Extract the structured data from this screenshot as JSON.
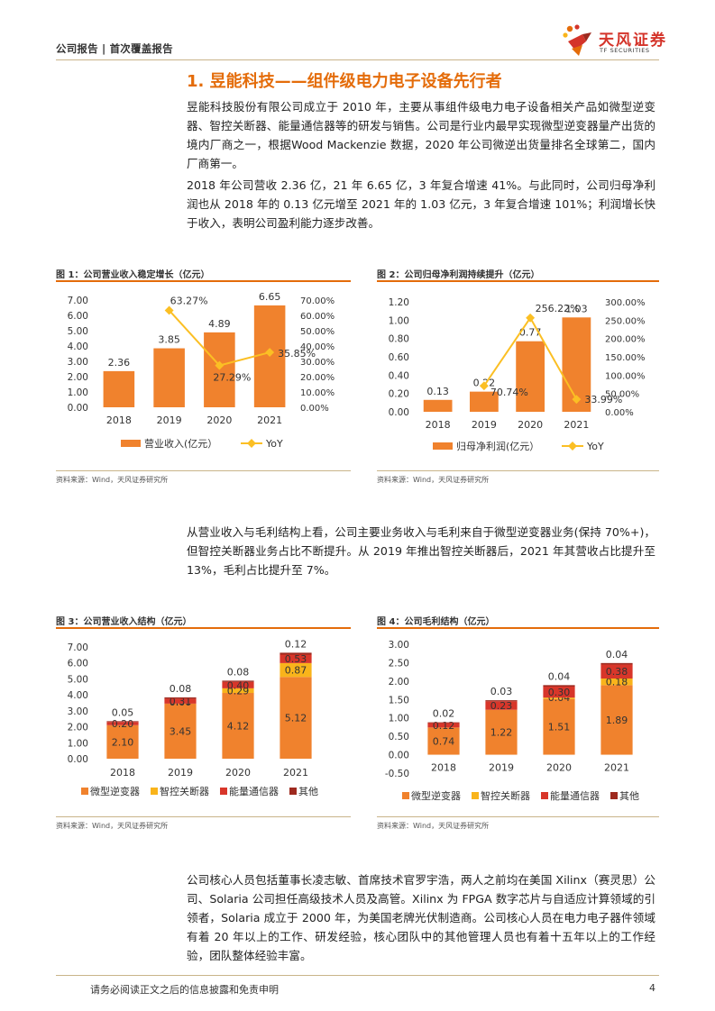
{
  "header": {
    "left_text": "公司报告 | 首次覆盖报告",
    "logo_name": "天风证券",
    "logo_en": "TF SECURITIES"
  },
  "section": {
    "title": "1. 昱能科技——组件级电力电子设备先行者"
  },
  "paragraphs": {
    "p1": "昱能科技股份有限公司成立于 2010 年，主要从事组件级电力电子设备相关产品如微型逆变器、智控关断器、能量通信器等的研发与销售。公司是行业内最早实现微型逆变器量产出货的境内厂商之一，根据Wood Mackenzie 数据，2020 年公司微逆出货量排名全球第二，国内厂商第一。",
    "p2": "2018 年公司营收 2.36 亿，21 年 6.65 亿，3 年复合增速 41%。与此同时，公司归母净利润也从 2018 年的 0.13 亿元增至 2021 年的 1.03 亿元，3 年复合增速 101%；利润增长快于收入，表明公司盈利能力逐步改善。",
    "p3": "从营业收入与毛利结构上看，公司主要业务收入与毛利来自于微型逆变器业务(保持 70%+)，但智控关断器业务占比不断提升。从 2019 年推出智控关断器后，2021 年其营收占比提升至 13%，毛利占比提升至 7%。",
    "p4": "公司核心人员包括董事长凌志敏、首席技术官罗宇浩，两人之前均在美国 Xilinx（赛灵思）公司、Solaria 公司担任高级技术人员及高管。Xilinx 为 FPGA 数字芯片与自适应计算领域的引领者，Solaria 成立于 2000 年，为美国老牌光伏制造商。公司核心人员在电力电子器件领域有着 20 年以上的工作、研发经验，核心团队中的其他管理人员也有着十五年以上的工作经验，团队整体经验丰富。"
  },
  "figures": {
    "fig1_title": "图 1：公司营业收入稳定增长（亿元）",
    "fig2_title": "图 2：公司归母净利润持续提升（亿元）",
    "fig3_title": "图 3：公司营业收入结构（亿元）",
    "fig4_title": "图 4：公司毛利结构（亿元）",
    "source": "资料来源：Wind，天风证券研究所"
  },
  "colors": {
    "orange": "#f0822d",
    "yellow": "#f9b41b",
    "red": "#d8362a",
    "darkred": "#9e2a1f",
    "line": "#fbbf24"
  },
  "chart_data": [
    {
      "id": "fig1",
      "type": "bar",
      "categories": [
        "2018",
        "2019",
        "2020",
        "2021"
      ],
      "series": [
        {
          "name": "营业收入(亿元）",
          "type": "bar",
          "axis": "left",
          "values": [
            2.36,
            3.85,
            4.89,
            6.65
          ],
          "labels": [
            "2.36",
            "3.85",
            "4.89",
            "6.65"
          ]
        },
        {
          "name": "YoY",
          "type": "line",
          "axis": "right",
          "values": [
            null,
            63.27,
            27.29,
            35.85
          ],
          "labels": [
            "",
            "63.27%",
            "27.29%",
            "35.85%"
          ]
        }
      ],
      "yleft": {
        "min": 0,
        "max": 7,
        "ticks": [
          "0.00",
          "1.00",
          "2.00",
          "3.00",
          "4.00",
          "5.00",
          "6.00",
          "7.00"
        ]
      },
      "yright": {
        "min": 0,
        "max": 70,
        "ticks": [
          "0.00%",
          "10.00%",
          "20.00%",
          "30.00%",
          "40.00%",
          "50.00%",
          "60.00%",
          "70.00%"
        ]
      },
      "legend": "bottom"
    },
    {
      "id": "fig2",
      "type": "bar",
      "categories": [
        "2018",
        "2019",
        "2020",
        "2021"
      ],
      "series": [
        {
          "name": "归母净利润(亿元）",
          "type": "bar",
          "axis": "left",
          "values": [
            0.13,
            0.22,
            0.77,
            1.03
          ],
          "labels": [
            "0.13",
            "0.22",
            "0.77",
            "1.03"
          ]
        },
        {
          "name": "YoY",
          "type": "line",
          "axis": "right",
          "values": [
            null,
            70.74,
            256.22,
            33.99
          ],
          "labels": [
            "",
            "70.74%",
            "256.22%",
            "33.99%"
          ]
        }
      ],
      "yleft": {
        "min": 0,
        "max": 1.2,
        "ticks": [
          "0.00",
          "0.20",
          "0.40",
          "0.60",
          "0.80",
          "1.00",
          "1.20"
        ]
      },
      "yright": {
        "min": 0,
        "max": 300,
        "ticks": [
          "0.00%",
          "50.00%",
          "100.00%",
          "150.00%",
          "200.00%",
          "250.00%",
          "300.00%"
        ]
      },
      "legend": "bottom"
    },
    {
      "id": "fig3",
      "type": "bar",
      "stacked": true,
      "categories": [
        "2018",
        "2019",
        "2020",
        "2021"
      ],
      "series": [
        {
          "name": "微型逆变器",
          "values": [
            2.1,
            3.45,
            4.12,
            5.12
          ],
          "labels": [
            "2.10",
            "3.45",
            "4.12",
            "5.12"
          ]
        },
        {
          "name": "智控关断器",
          "values": [
            0.0,
            0.0,
            0.29,
            0.87
          ],
          "labels": [
            "",
            "0.00",
            "0.29",
            "0.87"
          ]
        },
        {
          "name": "能量通信器",
          "values": [
            0.2,
            0.31,
            0.4,
            0.53
          ],
          "labels": [
            "0.20",
            "0.31",
            "0.40",
            "0.53"
          ]
        },
        {
          "name": "其他",
          "values": [
            0.05,
            0.08,
            0.08,
            0.12
          ],
          "labels": [
            "0.05",
            "0.08",
            "0.08",
            "0.12"
          ]
        }
      ],
      "y": {
        "min": 0,
        "max": 7,
        "ticks": [
          "0.00",
          "1.00",
          "2.00",
          "3.00",
          "4.00",
          "5.00",
          "6.00",
          "7.00"
        ]
      },
      "legend": "bottom"
    },
    {
      "id": "fig4",
      "type": "bar",
      "stacked": true,
      "categories": [
        "2018",
        "2019",
        "2020",
        "2021"
      ],
      "series": [
        {
          "name": "微型逆变器",
          "values": [
            0.74,
            1.22,
            1.51,
            1.89
          ],
          "labels": [
            "0.74",
            "1.22",
            "1.51",
            "1.89"
          ]
        },
        {
          "name": "智控关断器",
          "values": [
            0.0,
            0.0,
            0.04,
            0.18
          ],
          "labels": [
            "",
            "",
            "0.04",
            "0.18"
          ]
        },
        {
          "name": "能量通信器",
          "values": [
            0.12,
            0.23,
            0.3,
            0.38
          ],
          "labels": [
            "0.12",
            "0.23",
            "0.30",
            "0.38"
          ]
        },
        {
          "name": "其他",
          "values": [
            0.02,
            0.03,
            0.04,
            0.04
          ],
          "labels": [
            "0.02",
            "0.03",
            "0.04",
            "0.04"
          ]
        }
      ],
      "y": {
        "min": -0.5,
        "max": 3,
        "ticks": [
          "-0.50",
          "0.00",
          "0.50",
          "1.00",
          "1.50",
          "2.00",
          "2.50",
          "3.00"
        ]
      },
      "legend": "bottom"
    }
  ],
  "footer": {
    "disclaimer": "请务必阅读正文之后的信息披露和免责申明",
    "page_number": "4"
  }
}
